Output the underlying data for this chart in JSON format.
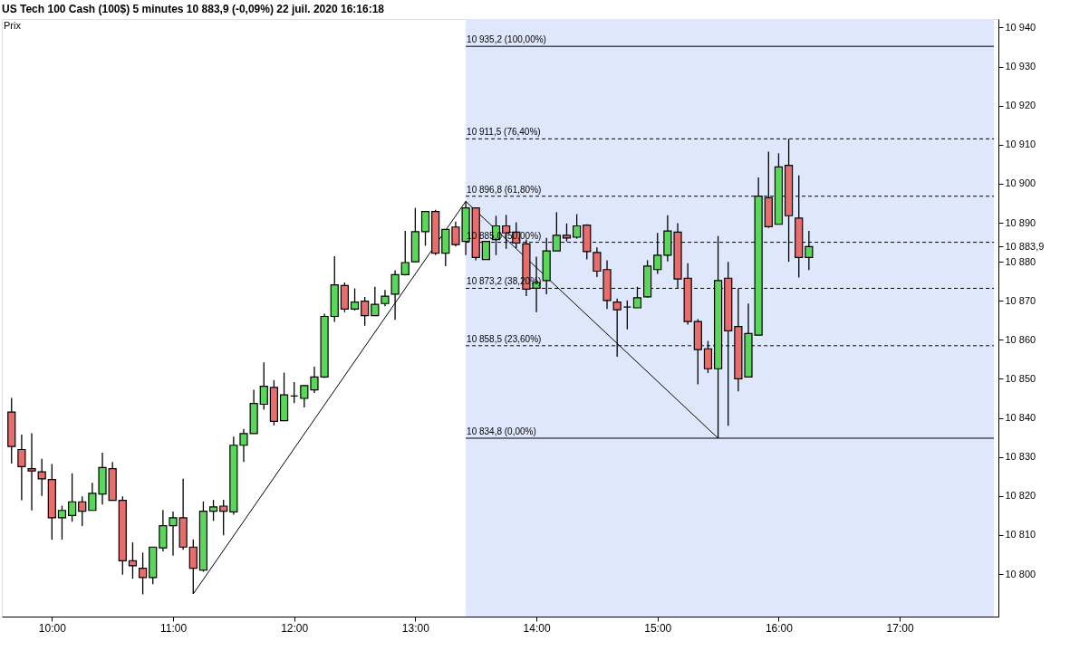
{
  "chart_data": {
    "type": "candlestick",
    "title": "US Tech 100 Cash (100$)   5 minutes   10 883,9 (-0,09%)   22 juil. 2020 16:16:18",
    "ylabel": "Prix",
    "x": [
      9.6667,
      9.75,
      9.8333,
      9.9167,
      10,
      10.0833,
      10.1667,
      10.25,
      10.3333,
      10.4167,
      10.5,
      10.5833,
      10.6667,
      10.75,
      10.8333,
      10.9167,
      11,
      11.0833,
      11.1667,
      11.25,
      11.3333,
      11.4167,
      11.5,
      11.5833,
      11.6667,
      11.75,
      11.8333,
      11.9167,
      12,
      12.0833,
      12.1667,
      12.25,
      12.3333,
      12.4167,
      12.5,
      12.5833,
      12.6667,
      12.75,
      12.8333,
      12.9167,
      13,
      13.0833,
      13.1667,
      13.25,
      13.3333,
      13.4167,
      13.5,
      13.5833,
      13.6667,
      13.75,
      13.8333,
      13.9167,
      14,
      14.0833,
      14.1667,
      14.25,
      14.3333,
      14.4167,
      14.5,
      14.5833,
      14.6667,
      14.75,
      14.8333,
      14.9167,
      15,
      15.0833,
      15.1667,
      15.25,
      15.3333,
      15.4167,
      15.5,
      15.5833,
      15.6667,
      15.75,
      15.8333,
      15.9167,
      16,
      16.0833,
      16.1667,
      16.25
    ],
    "ohlc": [
      [
        10841.5,
        10845.1,
        10828.3,
        10832.7
      ],
      [
        10831.9,
        10835.7,
        10818.9,
        10827.5
      ],
      [
        10827.0,
        10836.1,
        10816.3,
        10826.4
      ],
      [
        10826.2,
        10829.5,
        10820.0,
        10824.4
      ],
      [
        10824.2,
        10828.2,
        10808.8,
        10814.4
      ],
      [
        10814.4,
        10817.5,
        10808.8,
        10816.3
      ],
      [
        10815.0,
        10825.8,
        10813.4,
        10818.5
      ],
      [
        10818.5,
        10819.9,
        10812.3,
        10816.1
      ],
      [
        10816.3,
        10823.4,
        10816.3,
        10820.7
      ],
      [
        10820.5,
        10831.1,
        10817.8,
        10827.3
      ],
      [
        10827.0,
        10828.7,
        10818.9,
        10818.9
      ],
      [
        10818.9,
        10819.9,
        10799.8,
        10803.4
      ],
      [
        10803.4,
        10808.1,
        10798.8,
        10802.1
      ],
      [
        10801.5,
        10805.5,
        10794.8,
        10799.1
      ],
      [
        10799.1,
        10806.9,
        10797.4,
        10806.9
      ],
      [
        10806.7,
        10816.4,
        10805.8,
        10812.4
      ],
      [
        10812.4,
        10816.0,
        10804.7,
        10814.4
      ],
      [
        10814.4,
        10824.4,
        10806.2,
        10806.9
      ],
      [
        10806.9,
        10808.9,
        10794.9,
        10801.5
      ],
      [
        10801.0,
        10818.6,
        10800.6,
        10816.1
      ],
      [
        10816.1,
        10819.0,
        10813.6,
        10817.2
      ],
      [
        10817.4,
        10819.0,
        10809.9,
        10816.1
      ],
      [
        10815.9,
        10835.2,
        10815.2,
        10833.0
      ],
      [
        10833.0,
        10837.2,
        10828.7,
        10836.0
      ],
      [
        10836.0,
        10847.2,
        10836.0,
        10843.7
      ],
      [
        10843.5,
        10854.2,
        10842.1,
        10848.1
      ],
      [
        10847.8,
        10849.7,
        10838.1,
        10839.1
      ],
      [
        10839.3,
        10851.6,
        10839.3,
        10845.9
      ],
      [
        10845.6,
        10849.2,
        10843.8,
        10845.6
      ],
      [
        10845.0,
        10848.5,
        10842.7,
        10848.3
      ],
      [
        10847.2,
        10853.1,
        10846.4,
        10850.5
      ],
      [
        10850.5,
        10866.7,
        10850.2,
        10866.0
      ],
      [
        10866.0,
        10881.4,
        10864.6,
        10874.1
      ],
      [
        10873.9,
        10874.7,
        10867.1,
        10867.9
      ],
      [
        10867.9,
        10873.2,
        10867.5,
        10869.7
      ],
      [
        10869.9,
        10871.0,
        10863.6,
        10866.2
      ],
      [
        10866.2,
        10873.6,
        10866.2,
        10869.1
      ],
      [
        10869.3,
        10872.8,
        10868.6,
        10871.2
      ],
      [
        10871.7,
        10877.8,
        10865.1,
        10876.7
      ],
      [
        10876.7,
        10887.9,
        10876.5,
        10879.8
      ],
      [
        10880.0,
        10893.8,
        10880.0,
        10887.7
      ],
      [
        10887.7,
        10892.9,
        10884.1,
        10892.9
      ],
      [
        10892.9,
        10893.3,
        10881.7,
        10882.2
      ],
      [
        10882.2,
        10888.3,
        10878.9,
        10888.3
      ],
      [
        10888.9,
        10890.3,
        10883.9,
        10884.4
      ],
      [
        10885.2,
        10895.5,
        10881.7,
        10893.8
      ],
      [
        10893.8,
        10893.8,
        10880.4,
        10881.1
      ],
      [
        10880.6,
        10885.2,
        10880.6,
        10885.2
      ],
      [
        10885.7,
        10891.8,
        10881.7,
        10889.2
      ],
      [
        10889.2,
        10892.0,
        10883.3,
        10887.4
      ],
      [
        10887.6,
        10890.1,
        10883.5,
        10884.8
      ],
      [
        10884.6,
        10885.7,
        10871.2,
        10873.0
      ],
      [
        10873.2,
        10881.3,
        10867.1,
        10874.7
      ],
      [
        10875.2,
        10886.1,
        10871.7,
        10882.8
      ],
      [
        10882.8,
        10892.7,
        10882.8,
        10886.8
      ],
      [
        10886.8,
        10889.8,
        10885.2,
        10886.1
      ],
      [
        10886.3,
        10892.2,
        10885.9,
        10889.2
      ],
      [
        10889.4,
        10889.6,
        10880.6,
        10882.6
      ],
      [
        10882.4,
        10883.7,
        10876.1,
        10877.6
      ],
      [
        10878.0,
        10880.4,
        10867.9,
        10870.1
      ],
      [
        10869.7,
        10870.6,
        10855.7,
        10867.7
      ],
      [
        10868.4,
        10870.1,
        10862.7,
        10868.4
      ],
      [
        10868.2,
        10873.6,
        10868.2,
        10870.8
      ],
      [
        10871.0,
        10880.4,
        10870.8,
        10878.9
      ],
      [
        10878.0,
        10887.4,
        10876.9,
        10881.7
      ],
      [
        10881.7,
        10891.9,
        10880.1,
        10887.9
      ],
      [
        10887.6,
        10889.9,
        10873.2,
        10875.6
      ],
      [
        10875.8,
        10879.6,
        10863.9,
        10864.7
      ],
      [
        10864.7,
        10865.3,
        10848.6,
        10857.5
      ],
      [
        10857.7,
        10859.7,
        10851.5,
        10852.6
      ],
      [
        10852.6,
        10886.6,
        10834.8,
        10875.2
      ],
      [
        10875.8,
        10880.0,
        10838.0,
        10862.3
      ],
      [
        10863.4,
        10873.2,
        10846.8,
        10850.0
      ],
      [
        10850.5,
        10869.3,
        10850.5,
        10861.6
      ],
      [
        10861.2,
        10901.6,
        10861.2,
        10896.8
      ],
      [
        10896.4,
        10908.2,
        10888.7,
        10889.0
      ],
      [
        10889.6,
        10907.8,
        10889.6,
        10904.3
      ],
      [
        10904.7,
        10911.5,
        10880.0,
        10891.8
      ],
      [
        10891.2,
        10902.1,
        10876.0,
        10881.1
      ],
      [
        10881.1,
        10887.9,
        10877.9,
        10883.9
      ]
    ],
    "colors": [
      "#e86e6e",
      "#e86e6e",
      "#e86e6e",
      "#e86e6e",
      "#e86e6e",
      "#5ad65a",
      "#5ad65a",
      "#e86e6e",
      "#5ad65a",
      "#5ad65a",
      "#e86e6e",
      "#e86e6e",
      "#e86e6e",
      "#e86e6e",
      "#5ad65a",
      "#5ad65a",
      "#5ad65a",
      "#e86e6e",
      "#e86e6e",
      "#5ad65a",
      "#5ad65a",
      "#e86e6e",
      "#5ad65a",
      "#5ad65a",
      "#5ad65a",
      "#5ad65a",
      "#e86e6e",
      "#5ad65a",
      "#000000",
      "#5ad65a",
      "#5ad65a",
      "#5ad65a",
      "#5ad65a",
      "#e86e6e",
      "#5ad65a",
      "#e86e6e",
      "#5ad65a",
      "#5ad65a",
      "#5ad65a",
      "#5ad65a",
      "#5ad65a",
      "#5ad65a",
      "#e86e6e",
      "#5ad65a",
      "#e86e6e",
      "#5ad65a",
      "#e86e6e",
      "#5ad65a",
      "#5ad65a",
      "#e86e6e",
      "#e86e6e",
      "#e86e6e",
      "#5ad65a",
      "#5ad65a",
      "#5ad65a",
      "#e86e6e",
      "#5ad65a",
      "#e86e6e",
      "#e86e6e",
      "#e86e6e",
      "#e86e6e",
      "#000000",
      "#5ad65a",
      "#5ad65a",
      "#5ad65a",
      "#5ad65a",
      "#e86e6e",
      "#e86e6e",
      "#e86e6e",
      "#e86e6e",
      "#5ad65a",
      "#e86e6e",
      "#e86e6e",
      "#5ad65a",
      "#5ad65a",
      "#e86e6e",
      "#5ad65a",
      "#e86e6e",
      "#e86e6e",
      "#5ad65a"
    ],
    "series": [
      {
        "type": "line",
        "color": "#000000",
        "x": [
          11.1667,
          13.4167,
          15.5
        ],
        "values": [
          10794.9,
          10895.5,
          10834.8
        ]
      }
    ],
    "xlim": [
      9.6236,
      17.777
    ],
    "xticks": [
      {
        "value": 10,
        "label": "10:00"
      },
      {
        "value": 11,
        "label": "11:00"
      },
      {
        "value": 12,
        "label": "12:00"
      },
      {
        "value": 13,
        "label": "13:00"
      },
      {
        "value": 14,
        "label": "14:00"
      },
      {
        "value": 15,
        "label": "15:00"
      },
      {
        "value": 16,
        "label": "16:00"
      },
      {
        "value": 17,
        "label": "17:00"
      }
    ],
    "ylim": [
      10789.1,
      10942.2
    ],
    "yticks": [
      {
        "value": 10800,
        "label": "10 800"
      },
      {
        "value": 10810,
        "label": "10 810"
      },
      {
        "value": 10820,
        "label": "10 820"
      },
      {
        "value": 10830,
        "label": "10 830"
      },
      {
        "value": 10840,
        "label": "10 840"
      },
      {
        "value": 10850,
        "label": "10 850"
      },
      {
        "value": 10860,
        "label": "10 860"
      },
      {
        "value": 10870,
        "label": "10 870"
      },
      {
        "value": 10880,
        "label": "10 880"
      },
      {
        "value": 10883.9,
        "label": "10 883,9"
      },
      {
        "value": 10890,
        "label": "10 890"
      },
      {
        "value": 10900,
        "label": "10 900"
      },
      {
        "value": 10910,
        "label": "10 910"
      },
      {
        "value": 10920,
        "label": "10 920"
      },
      {
        "value": 10930,
        "label": "10 930"
      },
      {
        "value": 10940,
        "label": "10 940"
      }
    ],
    "bands": [
      {
        "axis": "x",
        "from": 13.4167,
        "to": 17.777,
        "color": "#dfe7fc"
      }
    ],
    "ref_lines": [
      {
        "axis": "y",
        "value": 10935.2,
        "label": "10 935,2 (100,00%)",
        "line_style": "solid"
      },
      {
        "axis": "y",
        "value": 10911.5,
        "label": "10 911,5 (76,40%)",
        "line_style": "dashed"
      },
      {
        "axis": "y",
        "value": 10896.8,
        "label": "10 896,8 (61,80%)",
        "line_style": "dashed"
      },
      {
        "axis": "y",
        "value": 10885.0,
        "label": "10 885,0 (50,00%)",
        "line_style": "dashed"
      },
      {
        "axis": "y",
        "value": 10873.2,
        "label": "10 873,2 (38,20%)",
        "line_style": "dashed"
      },
      {
        "axis": "y",
        "value": 10858.5,
        "label": "10 858,5 (23,60%)",
        "line_style": "dashed"
      },
      {
        "axis": "y",
        "value": 10834.8,
        "label": "10 834,8 (0,00%)",
        "line_style": "solid"
      }
    ],
    "grid": false
  }
}
